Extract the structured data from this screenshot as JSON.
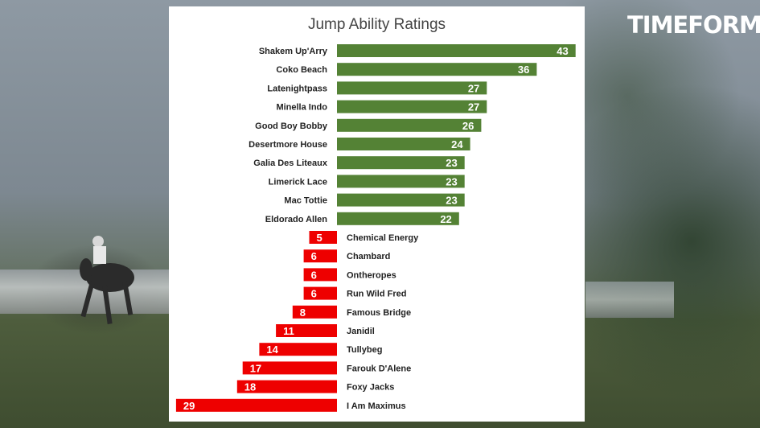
{
  "brand": {
    "logo_text": "TIMEFORM"
  },
  "colors": {
    "positive": "#548235",
    "negative": "#ee0000",
    "panel": "#ffffff"
  },
  "chart_data": {
    "type": "bar",
    "orientation": "horizontal",
    "title": "Jump Ability Ratings",
    "xlabel": "",
    "ylabel": "",
    "xlim": [
      -29,
      43
    ],
    "grid": false,
    "categories": [
      "Shakem Up'Arry",
      "Coko Beach",
      "Latenightpass",
      "Minella Indo",
      "Good Boy Bobby",
      "Desertmore House",
      "Galia Des Liteaux",
      "Limerick Lace",
      "Mac Tottie",
      "Eldorado Allen",
      "Chemical Energy",
      "Chambard",
      "Ontheropes",
      "Run Wild Fred",
      "Famous Bridge",
      "Janidil",
      "Tullybeg",
      "Farouk D'Alene",
      "Foxy Jacks",
      "I Am Maximus"
    ],
    "values": [
      43,
      36,
      27,
      27,
      26,
      24,
      23,
      23,
      23,
      22,
      -5,
      -6,
      -6,
      -6,
      -8,
      -11,
      -14,
      -17,
      -18,
      -29
    ],
    "display_labels": [
      "43",
      "36",
      "27",
      "27",
      "26",
      "24",
      "23",
      "23",
      "23",
      "22",
      "5",
      "6",
      "6",
      "6",
      "8",
      "11",
      "14",
      "17",
      "18",
      "29"
    ]
  }
}
